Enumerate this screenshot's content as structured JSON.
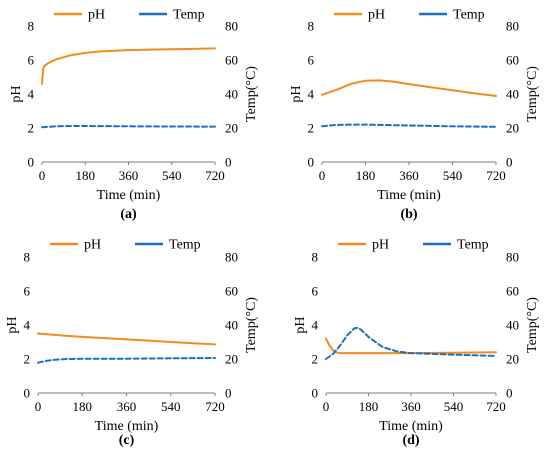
{
  "colors": {
    "ph": "#F28C1E",
    "temp": "#1F6FC1",
    "axis": "#7f7f7f"
  },
  "chart_data": [
    {
      "type": "line",
      "panel_label": "(a)",
      "xlabel": "Time (min)",
      "ylabel": "pH",
      "y2label": "Temp(°C)",
      "xlim": [
        0,
        720
      ],
      "ylim": [
        0,
        8
      ],
      "y2lim": [
        0,
        80
      ],
      "xticks": [
        0,
        180,
        360,
        540,
        720
      ],
      "yticks": [
        0,
        2,
        4,
        6,
        8
      ],
      "y2ticks": [
        0,
        20,
        40,
        60,
        80
      ],
      "legend_position": "top",
      "series": [
        {
          "name": "pH",
          "axis": "left",
          "style": "solid",
          "x": [
            0,
            5,
            10,
            30,
            60,
            120,
            180,
            240,
            300,
            360,
            450,
            540,
            630,
            720
          ],
          "y": [
            4.6,
            5.5,
            5.65,
            5.85,
            6.05,
            6.28,
            6.42,
            6.5,
            6.55,
            6.58,
            6.61,
            6.63,
            6.65,
            6.68
          ]
        },
        {
          "name": "Temp",
          "axis": "right",
          "style": "dashed",
          "x": [
            0,
            60,
            120,
            180,
            240,
            360,
            540,
            720
          ],
          "y": [
            20.5,
            21,
            21.2,
            21.2,
            21.1,
            21,
            20.9,
            20.8
          ]
        }
      ]
    },
    {
      "type": "line",
      "panel_label": "(b)",
      "xlabel": "Time (min)",
      "ylabel": "pH",
      "y2label": "Temp(°C)",
      "xlim": [
        0,
        720
      ],
      "ylim": [
        0,
        8
      ],
      "y2lim": [
        0,
        80
      ],
      "xticks": [
        0,
        180,
        360,
        540,
        720
      ],
      "yticks": [
        0,
        2,
        4,
        6,
        8
      ],
      "y2ticks": [
        0,
        20,
        40,
        60,
        80
      ],
      "legend_position": "top",
      "series": [
        {
          "name": "pH",
          "axis": "left",
          "style": "solid",
          "x": [
            0,
            60,
            120,
            180,
            240,
            300,
            360,
            450,
            540,
            630,
            720
          ],
          "y": [
            3.95,
            4.25,
            4.6,
            4.78,
            4.8,
            4.72,
            4.58,
            4.4,
            4.22,
            4.05,
            3.88
          ]
        },
        {
          "name": "Temp",
          "axis": "right",
          "style": "dashed",
          "x": [
            0,
            60,
            120,
            180,
            240,
            360,
            540,
            720
          ],
          "y": [
            21,
            21.8,
            22,
            22,
            21.8,
            21.5,
            21,
            20.7
          ]
        }
      ]
    },
    {
      "type": "line",
      "panel_label": "(c)",
      "xlabel": "Time (min)",
      "ylabel": "pH",
      "y2label": "Temp(°C)",
      "xlim": [
        0,
        720
      ],
      "ylim": [
        0,
        8
      ],
      "y2lim": [
        0,
        80
      ],
      "xticks": [
        0,
        180,
        360,
        540,
        720
      ],
      "yticks": [
        0,
        2,
        4,
        6,
        8
      ],
      "y2ticks": [
        0,
        20,
        40,
        60,
        80
      ],
      "legend_position": "top",
      "series": [
        {
          "name": "pH",
          "axis": "left",
          "style": "solid",
          "x": [
            0,
            60,
            120,
            180,
            270,
            360,
            450,
            540,
            630,
            720
          ],
          "y": [
            3.5,
            3.43,
            3.36,
            3.3,
            3.23,
            3.15,
            3.08,
            3.0,
            2.93,
            2.86
          ]
        },
        {
          "name": "Temp",
          "axis": "right",
          "style": "dashed",
          "x": [
            0,
            30,
            60,
            120,
            180,
            360,
            540,
            720
          ],
          "y": [
            17.8,
            18.8,
            19.5,
            20,
            20.1,
            20.2,
            20.4,
            20.6
          ]
        }
      ]
    },
    {
      "type": "line",
      "panel_label": "(d)",
      "xlabel": "Time (min)",
      "ylabel": "pH",
      "y2label": "Temp(°C)",
      "xlim": [
        0,
        720
      ],
      "ylim": [
        0,
        8
      ],
      "y2lim": [
        0,
        80
      ],
      "xticks": [
        0,
        180,
        360,
        540,
        720
      ],
      "yticks": [
        0,
        2,
        4,
        6,
        8
      ],
      "y2ticks": [
        0,
        20,
        40,
        60,
        80
      ],
      "legend_position": "top",
      "series": [
        {
          "name": "pH",
          "axis": "left",
          "style": "solid",
          "x": [
            0,
            15,
            30,
            45,
            60,
            90,
            180,
            360,
            540,
            720
          ],
          "y": [
            3.2,
            2.8,
            2.5,
            2.38,
            2.35,
            2.35,
            2.35,
            2.35,
            2.37,
            2.4
          ]
        },
        {
          "name": "Temp",
          "axis": "right",
          "style": "dashed",
          "x": [
            0,
            30,
            60,
            90,
            120,
            135,
            150,
            180,
            240,
            300,
            360,
            450,
            540,
            630,
            720
          ],
          "y": [
            20,
            23,
            28,
            34,
            38,
            38.5,
            37,
            33,
            27,
            24.5,
            23.5,
            23,
            22.6,
            22.2,
            21.8
          ]
        }
      ]
    }
  ]
}
